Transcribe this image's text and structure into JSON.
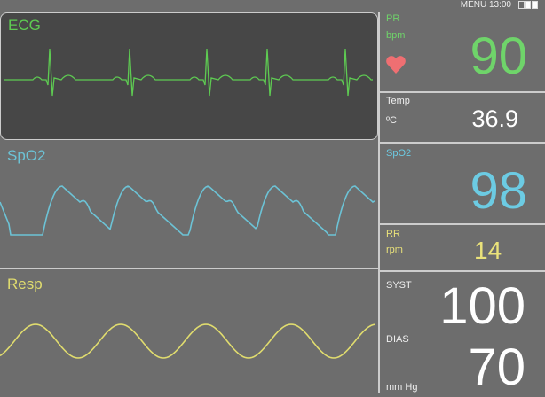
{
  "status_bar": {
    "menu_label": "MENU",
    "time": "13:00",
    "battery_icon": "battery-icon"
  },
  "waves": {
    "ecg": {
      "label": "ECG",
      "color": "#5ecb52"
    },
    "spo2": {
      "label": "SpO2",
      "color": "#6cc3d6"
    },
    "resp": {
      "label": "Resp",
      "color": "#e0dc6e"
    }
  },
  "params": {
    "pr": {
      "label": "PR",
      "unit": "bpm",
      "value": "90",
      "color": "#6fd46a",
      "icon": "heart-icon",
      "icon_color": "#ef6f72"
    },
    "temp": {
      "label": "Temp",
      "unit": "ºC",
      "value": "36.9",
      "color": "#ffffff"
    },
    "spo2": {
      "label": "SpO2",
      "value": "98",
      "color": "#6ccbe3"
    },
    "rr": {
      "label": "RR",
      "unit": "rpm",
      "value": "14",
      "color": "#eae27a"
    },
    "bp": {
      "syst_label": "SYST",
      "syst_value": "100",
      "dias_label": "DIAS",
      "dias_value": "70",
      "unit": "mm Hg",
      "color": "#ffffff"
    }
  }
}
